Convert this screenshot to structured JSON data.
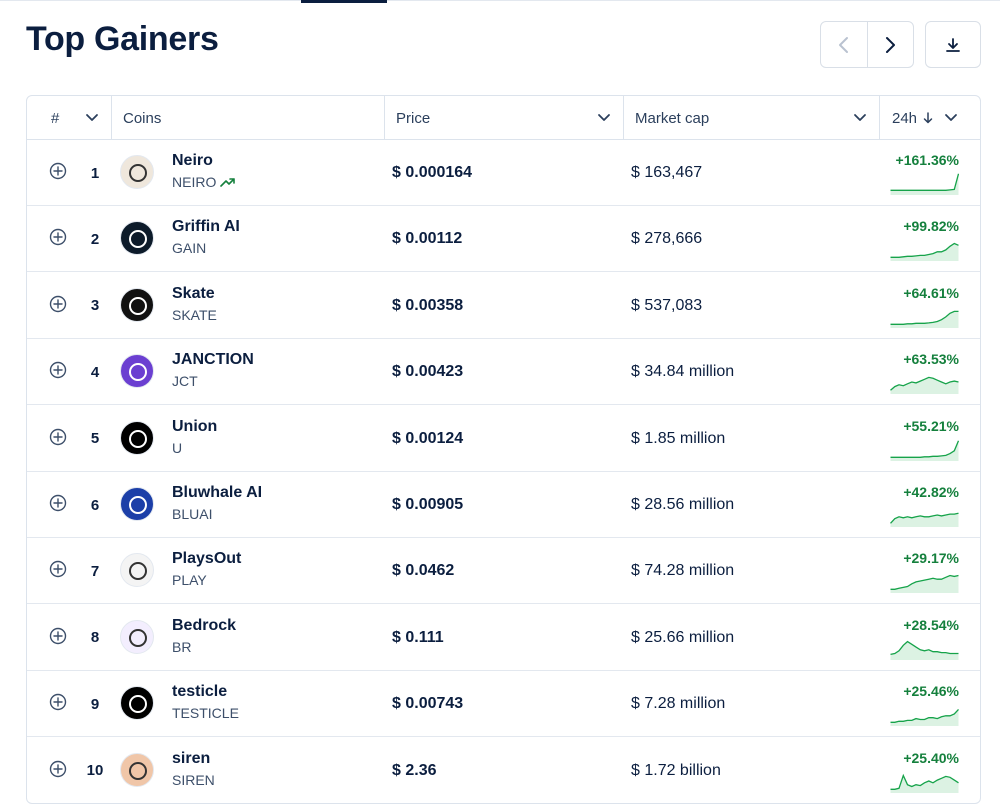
{
  "page": {
    "title": "Top Gainers"
  },
  "toolbar": {
    "prev_icon": "chevron-left-icon",
    "next_icon": "chevron-right-icon",
    "download_icon": "download-icon"
  },
  "table": {
    "columns": {
      "rank": "#",
      "coins": "Coins",
      "price": "Price",
      "market_cap": "Market cap",
      "change": "24h"
    },
    "sort": {
      "column": "24h",
      "direction": "descending"
    },
    "rows": [
      {
        "rank": "1",
        "name": "Neiro",
        "symbol": "NEIRO",
        "trending": true,
        "price": "$ 0.000164",
        "market_cap": "$ 163,467",
        "change": "+161.36%",
        "logo_color": "#efe7dc",
        "spark": [
          4,
          4,
          4,
          4,
          4,
          4,
          4,
          4,
          4,
          4,
          4,
          4,
          4,
          4,
          4.5,
          5,
          22
        ]
      },
      {
        "rank": "2",
        "name": "Griffin AI",
        "symbol": "GAIN",
        "trending": false,
        "price": "$ 0.00112",
        "market_cap": "$ 278,666",
        "change": "+99.82%",
        "logo_color": "#0d1b2a",
        "spark": [
          3,
          3,
          3,
          3.5,
          4,
          4,
          4.5,
          5,
          5,
          6,
          7,
          9,
          9,
          11,
          15,
          18,
          16
        ]
      },
      {
        "rank": "3",
        "name": "Skate",
        "symbol": "SKATE",
        "trending": false,
        "price": "$ 0.00358",
        "market_cap": "$ 537,083",
        "change": "+64.61%",
        "logo_color": "#111111",
        "spark": [
          3,
          3,
          3,
          3,
          3.5,
          3.5,
          4,
          4,
          4,
          4.5,
          5,
          6,
          8,
          11,
          15,
          17,
          17
        ]
      },
      {
        "rank": "4",
        "name": "JANCTION",
        "symbol": "JCT",
        "trending": false,
        "price": "$ 0.00423",
        "market_cap": "$ 34.84 million",
        "change": "+63.53%",
        "logo_color": "#6b3fd1",
        "spark": [
          3,
          7,
          9,
          8,
          10,
          12,
          11,
          13,
          15,
          17,
          16,
          14,
          12,
          10,
          12,
          13,
          12
        ]
      },
      {
        "rank": "5",
        "name": "Union",
        "symbol": "U",
        "trending": false,
        "price": "$ 0.00124",
        "market_cap": "$ 1.85 million",
        "change": "+55.21%",
        "logo_color": "#000000",
        "spark": [
          3,
          3,
          3,
          3,
          3,
          3,
          3,
          3,
          3.5,
          3.5,
          4,
          4,
          4.5,
          5,
          7,
          10,
          21
        ]
      },
      {
        "rank": "6",
        "name": "Bluwhale AI",
        "symbol": "BLUAI",
        "trending": false,
        "price": "$ 0.00905",
        "market_cap": "$ 28.56 million",
        "change": "+42.82%",
        "logo_color": "#1c3fa8",
        "spark": [
          3,
          8,
          10,
          9,
          10,
          9,
          10,
          11,
          10,
          10,
          11,
          12,
          11,
          12,
          13,
          13,
          14
        ]
      },
      {
        "rank": "7",
        "name": "PlaysOut",
        "symbol": "PLAY",
        "trending": false,
        "price": "$ 0.0462",
        "market_cap": "$ 74.28 million",
        "change": "+29.17%",
        "logo_color": "#f4f4f4",
        "spark": [
          3,
          3,
          4,
          5,
          6,
          9,
          11,
          12,
          13,
          14,
          15,
          14,
          14,
          16,
          18,
          17,
          18
        ]
      },
      {
        "rank": "8",
        "name": "Bedrock",
        "symbol": "BR",
        "trending": false,
        "price": "$ 0.111",
        "market_cap": "$ 25.66 million",
        "change": "+28.54%",
        "logo_color": "#f3eefe",
        "spark": [
          5,
          6,
          9,
          15,
          19,
          16,
          13,
          10,
          9,
          10,
          8,
          8,
          7,
          7,
          6,
          6,
          6
        ]
      },
      {
        "rank": "9",
        "name": "testicle",
        "symbol": "TESTICLE",
        "trending": false,
        "price": "$ 0.00743",
        "market_cap": "$ 7.28 million",
        "change": "+25.46%",
        "logo_color": "#000000",
        "spark": [
          3,
          3,
          4,
          4,
          5,
          5,
          7,
          6,
          6,
          8,
          8,
          7,
          9,
          10,
          10,
          12,
          17
        ]
      },
      {
        "rank": "10",
        "name": "siren",
        "symbol": "SIREN",
        "trending": false,
        "price": "$ 2.36",
        "market_cap": "$ 1.72 billion",
        "change": "+25.40%",
        "logo_color": "#f0c6a8",
        "spark": [
          3,
          3,
          4,
          18,
          8,
          6,
          8,
          7,
          10,
          12,
          10,
          13,
          15,
          17,
          16,
          13,
          10
        ]
      }
    ]
  }
}
